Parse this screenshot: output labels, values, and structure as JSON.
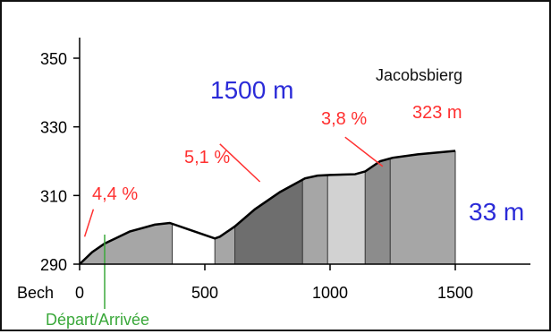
{
  "chart_data": {
    "type": "area",
    "title": "",
    "xlabel": "",
    "ylabel": "",
    "xlim": [
      0,
      1800
    ],
    "ylim": [
      290,
      356
    ],
    "x_ticks": [
      0,
      500,
      1000,
      1500
    ],
    "x_tick_labels": [
      "0",
      "500",
      "1000",
      "1500"
    ],
    "y_ticks": [
      290,
      310,
      330,
      350
    ],
    "y_tick_labels": [
      "290",
      "310",
      "330",
      "350"
    ],
    "x_axis_prefix": "Bech",
    "grid": false,
    "profile": {
      "x": [
        0,
        50,
        100,
        200,
        300,
        360,
        440,
        540,
        560,
        620,
        700,
        800,
        900,
        950,
        1000,
        1100,
        1140,
        1200,
        1250,
        1350,
        1500
      ],
      "y": [
        290,
        293.5,
        296,
        299.5,
        301.5,
        302,
        300,
        297.5,
        298,
        301,
        306,
        311,
        315,
        315.8,
        316,
        316.2,
        317,
        320,
        321,
        322,
        323
      ]
    },
    "segments": [
      {
        "from": 0,
        "to": 370,
        "shade": "#a6a6a6"
      },
      {
        "from": 370,
        "to": 540,
        "shade": "#ffffff"
      },
      {
        "from": 540,
        "to": 620,
        "shade": "#a6a6a6"
      },
      {
        "from": 620,
        "to": 890,
        "shade": "#6e6e6e"
      },
      {
        "from": 890,
        "to": 990,
        "shade": "#a6a6a6"
      },
      {
        "from": 990,
        "to": 1140,
        "shade": "#d2d2d2"
      },
      {
        "from": 1140,
        "to": 1240,
        "shade": "#8c8c8c"
      },
      {
        "from": 1240,
        "to": 1500,
        "shade": "#a6a6a6"
      }
    ],
    "start_marker_x": 100,
    "annotations": {
      "distance": "1500 m",
      "summit_name": "Jacobsbierg",
      "summit_elevation": "323 m",
      "elevation_gain": "33 m",
      "start_label": "Départ/Arrivée",
      "grades": [
        {
          "label": "4,4 %",
          "line_from": [
            20,
            298
          ],
          "line_to": [
            55,
            306
          ]
        },
        {
          "label": "5,1 %",
          "line_from": [
            560,
            325
          ],
          "line_to": [
            720,
            314
          ]
        },
        {
          "label": "3,8 %",
          "line_from": [
            1060,
            327
          ],
          "line_to": [
            1210,
            318.5
          ]
        }
      ]
    },
    "colors": {
      "profile_line": "#000000",
      "grade_text": "#ff3030",
      "distance_text": "#2b2bd8",
      "summit_text": "#111111",
      "start_marker": "#3aa83a"
    }
  }
}
